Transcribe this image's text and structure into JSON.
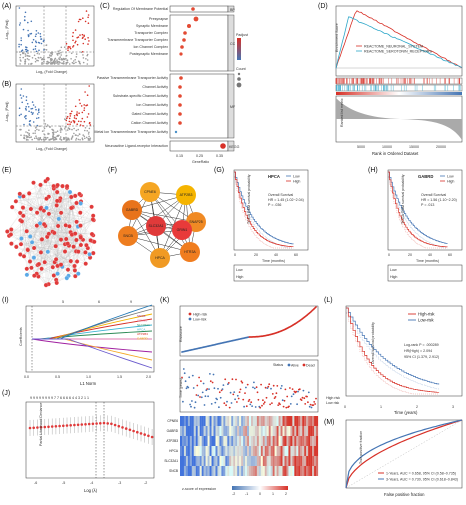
{
  "panels": {
    "A": {
      "label": "(A)",
      "ylabel": "-Log₁₀ (Padj)",
      "xlabel": "Log₂ (Fold Change)"
    },
    "B": {
      "label": "(B)",
      "ylabel": "-Log₁₀ (Padj)",
      "xlabel": "Log₂ (Fold Change)"
    },
    "C": {
      "label": "(C)",
      "terms": [
        "Regulation Of Membrane Potential",
        "Presynapse",
        "Synaptic Membrane",
        "Transporter Complex",
        "Transmembrane Transporter Complex",
        "Ion Channel Complex",
        "Postsynaptic Membrane",
        "Passive Transmembrane Transporter Activity",
        "Channel Activity",
        "Substrate-specific Channel Activity",
        "Ion Channel Activity",
        "Gated Channel Activity",
        "Cation Channel Activity",
        "Metal Ion Transmembrane Transporter Activity",
        "Neuroactive Ligand-receptor Interaction"
      ],
      "groups": [
        "BP",
        "CC",
        "MF",
        "KEGG"
      ],
      "xlabel": "GeneRatio",
      "xticks": [
        "0.15",
        "0.25",
        "0.35"
      ],
      "legend_padj": "Padjust",
      "legend_count": "Count"
    },
    "D": {
      "label": "(D)",
      "ylabel_top": "Enrichment Score",
      "ylabel_bottom": "Ranked list metric",
      "xlabel": "Rank in Ordered Dataset",
      "legend": [
        "REACTOME_NEURONAL_SYSTEM",
        "REACTOME_SEROTONIN_RECEPTORS"
      ],
      "xticks": [
        "5000",
        "10000",
        "15000",
        "20000"
      ]
    },
    "E": {
      "label": "(E)"
    },
    "F": {
      "label": "(F)",
      "nodes": [
        "CPNE6",
        "ATP2B3",
        "GABRD",
        "SNAP25",
        "SNCB",
        "SLC32A1",
        "GRIN1",
        "HTR3A",
        "HPCA"
      ]
    },
    "G": {
      "label": "(G)",
      "gene": "HPCA",
      "legend": [
        "Low",
        "High"
      ],
      "survival_text": "Overall Survival",
      "hr_text": "HR = 1.45 (1.02−2.04)",
      "p_text": "P = .036",
      "ylabel": "TCGA GBM survival probability",
      "xlabel": "Time (months)",
      "xticks": [
        "0",
        "20",
        "40",
        "60"
      ],
      "risk_rows": [
        "Low",
        "High"
      ]
    },
    "H": {
      "label": "(H)",
      "gene": "GABRD",
      "legend": [
        "Low",
        "High"
      ],
      "survival_text": "Overall Survival",
      "hr_text": "HR = 1.56 (1.10−2.20)",
      "p_text": "P = .013",
      "ylabel": "TCGA GBM survival probability",
      "xlabel": "Time (months)",
      "xticks": [
        "0",
        "20",
        "40",
        "60"
      ],
      "risk_rows": [
        "Low",
        "High"
      ]
    },
    "I": {
      "label": "(I)",
      "ylabel": "Coefficients",
      "xlabel": "L1 Norm",
      "top_ticks": [
        "5",
        "6",
        "9"
      ],
      "xticks": [
        "0.0",
        "0.5",
        "1.0",
        "1.5",
        "2.0"
      ],
      "genes": [
        "SNCB",
        "CPNE6",
        "SLC32A1",
        "HPCA",
        "ATP2B3",
        "GABRD"
      ]
    },
    "J": {
      "label": "(J)",
      "ylabel": "Partial Likelihood Deviance",
      "xlabel": "Log (λ)",
      "xticks": [
        "-6",
        "-5",
        "-4",
        "-3",
        "-2"
      ],
      "top_ticks": "9 9 9 9 9 9 9 9 7 7 6 6 6 6 4 4 3 2 1 1"
    },
    "K": {
      "label": "(K)",
      "legend_risk": [
        "High-risk",
        "Low-risk"
      ],
      "ylabel_top": "Riskscore",
      "ylabel_mid": "Time (years)",
      "status_title": "Status",
      "status_items": [
        "Alive",
        "Dead"
      ],
      "heat_genes": [
        "CPNE6",
        "GABRD",
        "ATP2B3",
        "HPCA",
        "SLC32A1",
        "SNCB"
      ],
      "colorbar_label": "z-score of expression",
      "colorbar_ticks": [
        "-2",
        "-1",
        "0",
        "1",
        "2"
      ]
    },
    "L": {
      "label": "(L)",
      "legend": [
        "High-risk",
        "Low-risk"
      ],
      "ylabel": "Overall survival probability",
      "xlabel": "Time (years)",
      "xticks": [
        "0",
        "1",
        "2",
        "3"
      ],
      "stats": [
        "Log-rank P = .000289",
        "HR(High) = 2.094",
        "95% CI (1.379, 2.912)"
      ],
      "risk_rows": [
        "High risk",
        "Low risk"
      ]
    },
    "M": {
      "label": "(M)",
      "ylabel": "True positive fraction",
      "xlabel": "False positive fraction",
      "legend": [
        "1-Years, AUC = 0.658, 95% CI (0.58−0.735)",
        "3-Years, AUC = 0.730, 95% CI (0.618−0.843)"
      ]
    }
  },
  "colors": {
    "red": "#d73027",
    "blue": "#4575b4",
    "cyan": "#2ea7c9",
    "grey": "#9e9e9e",
    "orange": "#e66101"
  }
}
